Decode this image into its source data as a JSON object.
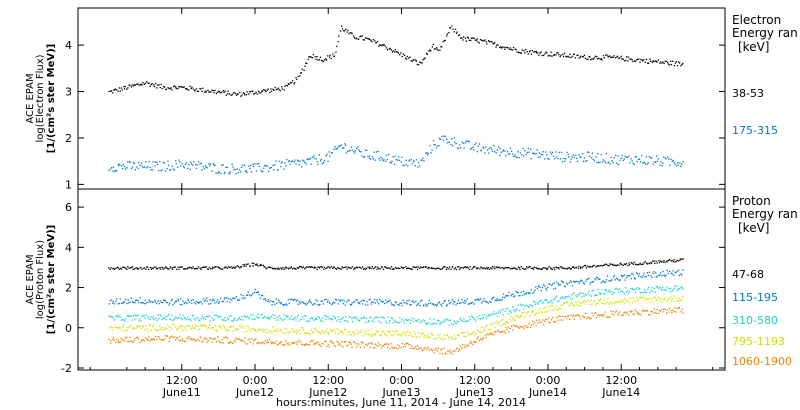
{
  "chart_data": [
    {
      "type": "scatter",
      "panel": "top",
      "ylabel": [
        "ACE EPAM",
        "log(Electron Flux)",
        "[1/(cm²s ster MeV)]"
      ],
      "ylim": [
        0.9,
        4.8
      ],
      "yticks": [
        "1",
        "2",
        "3",
        "4"
      ],
      "ytick_values": [
        1,
        2,
        3,
        4
      ],
      "legend_title": [
        "Electron",
        "Energy ran",
        "[keV]"
      ],
      "series": [
        {
          "name": "38-53",
          "color": "#000000",
          "points": [
            [
              0,
              3.0
            ],
            [
              3,
              3.1
            ],
            [
              6,
              3.2
            ],
            [
              9,
              3.1
            ],
            [
              12,
              3.1
            ],
            [
              15,
              3.05
            ],
            [
              18,
              3.0
            ],
            [
              21,
              2.95
            ],
            [
              24,
              3.0
            ],
            [
              27,
              3.05
            ],
            [
              29,
              3.1
            ],
            [
              31,
              3.3
            ],
            [
              33,
              3.8
            ],
            [
              35,
              3.7
            ],
            [
              37,
              3.8
            ],
            [
              38,
              4.4
            ],
            [
              40,
              4.2
            ],
            [
              42,
              4.15
            ],
            [
              45,
              4.0
            ],
            [
              48,
              3.8
            ],
            [
              51,
              3.6
            ],
            [
              53,
              4.0
            ],
            [
              54,
              3.85
            ],
            [
              56,
              4.4
            ],
            [
              58,
              4.15
            ],
            [
              61,
              4.1
            ],
            [
              64,
              4.0
            ],
            [
              67,
              3.9
            ],
            [
              70,
              3.85
            ],
            [
              74,
              3.8
            ],
            [
              78,
              3.75
            ],
            [
              82,
              3.75
            ],
            [
              86,
              3.7
            ],
            [
              90,
              3.65
            ],
            [
              94,
              3.6
            ]
          ]
        },
        {
          "name": "175-315",
          "color": "#0078d0",
          "points": [
            [
              0,
              1.4
            ],
            [
              3,
              1.4
            ],
            [
              6,
              1.4
            ],
            [
              9,
              1.4
            ],
            [
              12,
              1.45
            ],
            [
              15,
              1.4
            ],
            [
              18,
              1.35
            ],
            [
              21,
              1.35
            ],
            [
              24,
              1.35
            ],
            [
              27,
              1.4
            ],
            [
              30,
              1.45
            ],
            [
              33,
              1.5
            ],
            [
              36,
              1.6
            ],
            [
              38,
              1.85
            ],
            [
              40,
              1.75
            ],
            [
              42,
              1.65
            ],
            [
              45,
              1.6
            ],
            [
              48,
              1.5
            ],
            [
              51,
              1.45
            ],
            [
              53,
              1.85
            ],
            [
              55,
              2.0
            ],
            [
              57,
              1.9
            ],
            [
              60,
              1.8
            ],
            [
              63,
              1.75
            ],
            [
              67,
              1.7
            ],
            [
              71,
              1.65
            ],
            [
              75,
              1.6
            ],
            [
              79,
              1.6
            ],
            [
              83,
              1.55
            ],
            [
              87,
              1.55
            ],
            [
              91,
              1.5
            ],
            [
              94,
              1.5
            ]
          ]
        }
      ]
    },
    {
      "type": "scatter",
      "panel": "bottom",
      "ylabel": [
        "ACE EPAM",
        "log(Proton Flux)",
        "[1/(cm²s ster MeV)]"
      ],
      "ylim": [
        -2.1,
        6.9
      ],
      "yticks": [
        "-2",
        "0",
        "2",
        "4",
        "6"
      ],
      "ytick_values": [
        -2,
        0,
        2,
        4,
        6
      ],
      "legend_title": [
        "Proton",
        "Energy ran",
        "[keV]"
      ],
      "series": [
        {
          "name": "47-68",
          "color": "#000000",
          "points": [
            [
              0,
              3.0
            ],
            [
              10,
              3.0
            ],
            [
              20,
              3.0
            ],
            [
              24,
              3.2
            ],
            [
              26,
              3.0
            ],
            [
              40,
              3.0
            ],
            [
              60,
              3.0
            ],
            [
              75,
              3.0
            ],
            [
              85,
              3.2
            ],
            [
              94,
              3.4
            ]
          ]
        },
        {
          "name": "115-195",
          "color": "#0078d0",
          "points": [
            [
              0,
              1.3
            ],
            [
              4,
              1.4
            ],
            [
              10,
              1.3
            ],
            [
              20,
              1.4
            ],
            [
              24,
              1.8
            ],
            [
              26,
              1.3
            ],
            [
              40,
              1.3
            ],
            [
              55,
              1.25
            ],
            [
              62,
              1.4
            ],
            [
              68,
              1.8
            ],
            [
              74,
              2.2
            ],
            [
              80,
              2.4
            ],
            [
              86,
              2.6
            ],
            [
              94,
              2.8
            ]
          ]
        },
        {
          "name": "310-580",
          "color": "#20d0d0",
          "points": [
            [
              0,
              0.5
            ],
            [
              10,
              0.55
            ],
            [
              20,
              0.5
            ],
            [
              24,
              0.6
            ],
            [
              30,
              0.5
            ],
            [
              40,
              0.45
            ],
            [
              50,
              0.4
            ],
            [
              56,
              0.3
            ],
            [
              62,
              0.6
            ],
            [
              68,
              1.1
            ],
            [
              74,
              1.5
            ],
            [
              80,
              1.8
            ],
            [
              86,
              1.9
            ],
            [
              94,
              2.0
            ]
          ]
        },
        {
          "name": "795-1193",
          "color": "#d0e000",
          "points": [
            [
              0,
              0.0
            ],
            [
              10,
              0.05
            ],
            [
              20,
              0.0
            ],
            [
              30,
              -0.1
            ],
            [
              40,
              -0.2
            ],
            [
              50,
              -0.3
            ],
            [
              56,
              -0.5
            ],
            [
              60,
              -0.2
            ],
            [
              66,
              0.5
            ],
            [
              72,
              1.0
            ],
            [
              78,
              1.3
            ],
            [
              86,
              1.4
            ],
            [
              94,
              1.5
            ]
          ]
        },
        {
          "name": "1060-1900",
          "color": "#f08000",
          "points": [
            [
              0,
              -0.6
            ],
            [
              10,
              -0.5
            ],
            [
              20,
              -0.6
            ],
            [
              30,
              -0.7
            ],
            [
              40,
              -0.8
            ],
            [
              50,
              -0.9
            ],
            [
              56,
              -1.2
            ],
            [
              60,
              -0.6
            ],
            [
              66,
              0.0
            ],
            [
              72,
              0.4
            ],
            [
              78,
              0.6
            ],
            [
              86,
              0.8
            ],
            [
              94,
              0.9
            ]
          ]
        }
      ]
    }
  ],
  "xaxis": {
    "title": "hours:minutes, June 11, 2014 - June 14, 2014",
    "range_hours": [
      -5,
      101
    ],
    "ticks": [
      {
        "hours": 12,
        "time": "12:00",
        "date": "June11"
      },
      {
        "hours": 24,
        "time": "0:00",
        "date": "June12"
      },
      {
        "hours": 36,
        "time": "12:00",
        "date": "June12"
      },
      {
        "hours": 48,
        "time": "0:00",
        "date": "June13"
      },
      {
        "hours": 60,
        "time": "12:00",
        "date": "June13"
      },
      {
        "hours": 72,
        "time": "0:00",
        "date": "June14"
      },
      {
        "hours": 84,
        "time": "12:00",
        "date": "June14"
      }
    ]
  }
}
